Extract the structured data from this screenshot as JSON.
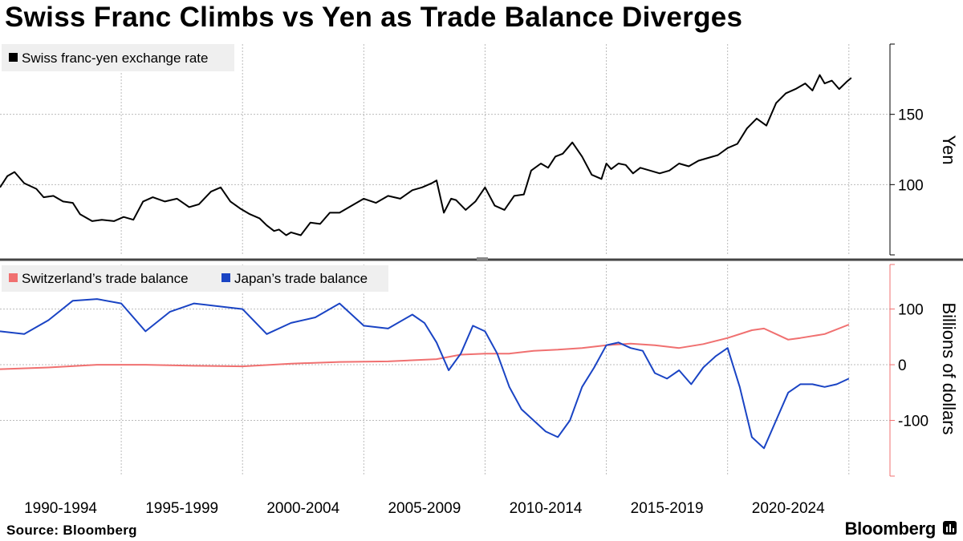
{
  "title": "Swiss Franc Climbs vs Yen as Trade Balance Diverges",
  "source": "Source: Bloomberg",
  "brand": "Bloomberg",
  "colors": {
    "franc_yen": "#000000",
    "switzerland": "#f07070",
    "japan": "#1a44c4",
    "grid": "#bbbbbb"
  },
  "x_labels": [
    "1990-1994",
    "1995-1999",
    "2000-2004",
    "2005-2009",
    "2010-2014",
    "2015-2019",
    "2020-2024"
  ],
  "chart_data": [
    {
      "type": "line",
      "ylabel": "Yen",
      "ylim": [
        50,
        200
      ],
      "yticks": [
        100,
        150
      ],
      "xlim": [
        1990,
        2026
      ],
      "legend": [
        "Swiss franc-yen exchange rate"
      ],
      "series": [
        {
          "name": "Swiss franc-yen exchange rate",
          "x": [
            1990.0,
            1990.3,
            1990.6,
            1991.0,
            1991.5,
            1991.8,
            1992.2,
            1992.6,
            1993.0,
            1993.3,
            1993.8,
            1994.2,
            1994.7,
            1995.1,
            1995.5,
            1995.9,
            1996.3,
            1996.8,
            1997.3,
            1997.8,
            1998.2,
            1998.7,
            1999.1,
            1999.5,
            1999.9,
            2000.3,
            2000.7,
            2001.0,
            2001.3,
            2001.5,
            2001.8,
            2002.0,
            2002.4,
            2002.8,
            2003.2,
            2003.6,
            2004.0,
            2004.5,
            2005.0,
            2005.5,
            2006.0,
            2006.5,
            2007.0,
            2007.4,
            2007.8,
            2008.0,
            2008.3,
            2008.6,
            2008.8,
            2009.2,
            2009.6,
            2010.0,
            2010.4,
            2010.8,
            2011.2,
            2011.6,
            2011.9,
            2012.3,
            2012.6,
            2012.9,
            2013.2,
            2013.6,
            2014.0,
            2014.4,
            2014.8,
            2015.0,
            2015.2,
            2015.5,
            2015.8,
            2016.1,
            2016.4,
            2016.8,
            2017.2,
            2017.6,
            2018.0,
            2018.4,
            2018.8,
            2019.2,
            2019.6,
            2020.0,
            2020.4,
            2020.8,
            2021.2,
            2021.6,
            2022.0,
            2022.4,
            2022.8,
            2023.2,
            2023.5,
            2023.8,
            2024.0,
            2024.3,
            2024.6,
            2024.9,
            2025.1
          ],
          "y": [
            98,
            106,
            109,
            101,
            97,
            91,
            92,
            88,
            87,
            79,
            74,
            75,
            74,
            77,
            75,
            88,
            91,
            88,
            90,
            84,
            86,
            95,
            98,
            88,
            83,
            79,
            76,
            71,
            67,
            68,
            64,
            66,
            64,
            73,
            72,
            80,
            80,
            85,
            90,
            87,
            92,
            90,
            96,
            98,
            101,
            103,
            80,
            90,
            89,
            82,
            88,
            98,
            85,
            82,
            92,
            93,
            110,
            115,
            112,
            120,
            122,
            130,
            120,
            107,
            104,
            115,
            111,
            115,
            114,
            108,
            112,
            110,
            108,
            110,
            115,
            113,
            117,
            119,
            121,
            126,
            129,
            140,
            147,
            142,
            158,
            165,
            168,
            172,
            167,
            178,
            172,
            174,
            168,
            173,
            176
          ]
        }
      ]
    },
    {
      "type": "line",
      "ylabel": "Billions of dollars",
      "ylim": [
        -200,
        180
      ],
      "yticks": [
        -100,
        0,
        100
      ],
      "xlim": [
        1990,
        2026
      ],
      "legend": [
        "Switzerland’s trade balance",
        "Japan’s trade balance"
      ],
      "series": [
        {
          "name": "Switzerland’s trade balance",
          "x": [
            1990,
            1992,
            1994,
            1996,
            1998,
            2000,
            2002,
            2004,
            2006,
            2008,
            2009,
            2010,
            2011,
            2012,
            2013,
            2014,
            2015,
            2016,
            2017,
            2018,
            2019,
            2020,
            2021,
            2021.5,
            2022,
            2022.5,
            2023,
            2024,
            2025
          ],
          "y": [
            -8,
            -5,
            0,
            0,
            -2,
            -3,
            2,
            5,
            6,
            10,
            18,
            20,
            20,
            25,
            27,
            30,
            35,
            38,
            35,
            30,
            37,
            48,
            62,
            65,
            55,
            45,
            48,
            55,
            72
          ]
        },
        {
          "name": "Japan’s trade balance",
          "x": [
            1990,
            1991,
            1992,
            1993,
            1994,
            1995,
            1996,
            1997,
            1998,
            1999,
            2000,
            2001,
            2002,
            2003,
            2004,
            2005,
            2006,
            2007,
            2007.5,
            2008,
            2008.5,
            2009,
            2009.5,
            2010,
            2010.5,
            2011,
            2011.5,
            2012,
            2012.5,
            2013,
            2013.5,
            2014,
            2014.5,
            2015,
            2015.5,
            2016,
            2016.5,
            2017,
            2017.5,
            2018,
            2018.5,
            2019,
            2019.5,
            2020,
            2020.5,
            2021,
            2021.5,
            2022,
            2022.5,
            2023,
            2023.5,
            2024,
            2024.5,
            2025
          ],
          "y": [
            60,
            55,
            80,
            115,
            118,
            110,
            60,
            95,
            110,
            105,
            100,
            55,
            75,
            85,
            110,
            70,
            65,
            90,
            75,
            40,
            -10,
            20,
            70,
            60,
            20,
            -40,
            -80,
            -100,
            -120,
            -130,
            -100,
            -40,
            -5,
            35,
            40,
            30,
            25,
            -15,
            -25,
            -10,
            -35,
            -5,
            15,
            30,
            -40,
            -130,
            -150,
            -100,
            -50,
            -35,
            -35,
            -40,
            -35,
            -25
          ]
        }
      ]
    }
  ]
}
